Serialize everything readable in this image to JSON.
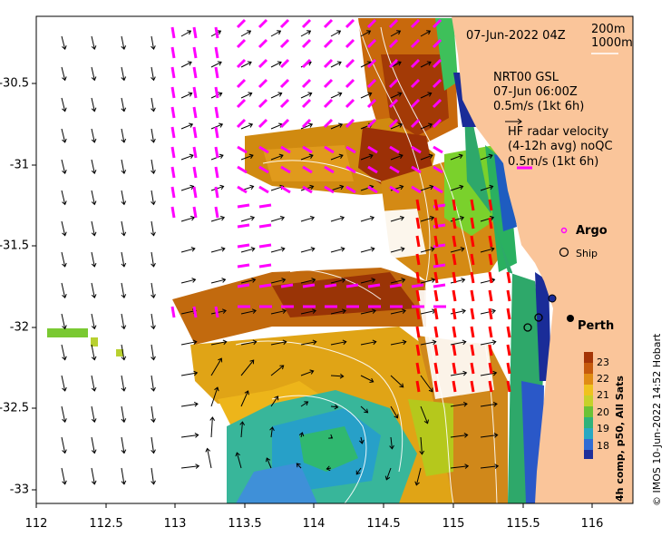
{
  "map": {
    "x_ticks": [
      "112",
      "112.5",
      "113",
      "113.5",
      "114",
      "114.5",
      "115",
      "115.5",
      "116"
    ],
    "y_ticks": [
      "-30.5",
      "-31",
      "-31.5",
      "-32",
      "-32.5",
      "-33"
    ],
    "extent": {
      "lon": [
        112,
        116.3
      ],
      "lat": [
        -33.2,
        -30.05
      ]
    }
  },
  "header": {
    "date": "07-Jun-2022 04Z",
    "depth1": "200m",
    "depth2": "1000m"
  },
  "model": {
    "name": "NRT00 GSL",
    "time": "07-Jun 06:00Z",
    "scale": "0.5m/s (1kt 6h)"
  },
  "radar": {
    "title": "HF radar velocity",
    "subtitle": "(4-12h avg) noQC",
    "scale": "0.5m/s (1kt 6h)"
  },
  "legend": {
    "argo": "Argo",
    "ship": "Ship"
  },
  "place": {
    "city": "Perth"
  },
  "colorbar": {
    "label": "4h comp, p50, All Sats",
    "ticks": [
      "23",
      "22",
      "21",
      "20",
      "19",
      "18"
    ]
  },
  "credit": "© IMOS 10-Jun-2022 14:52 Hobart",
  "colors": {
    "land": "#fac59a",
    "model_arrows": "#000000",
    "radar_arrows": "#ff00ff",
    "ship_tracks": "#ff0000"
  }
}
